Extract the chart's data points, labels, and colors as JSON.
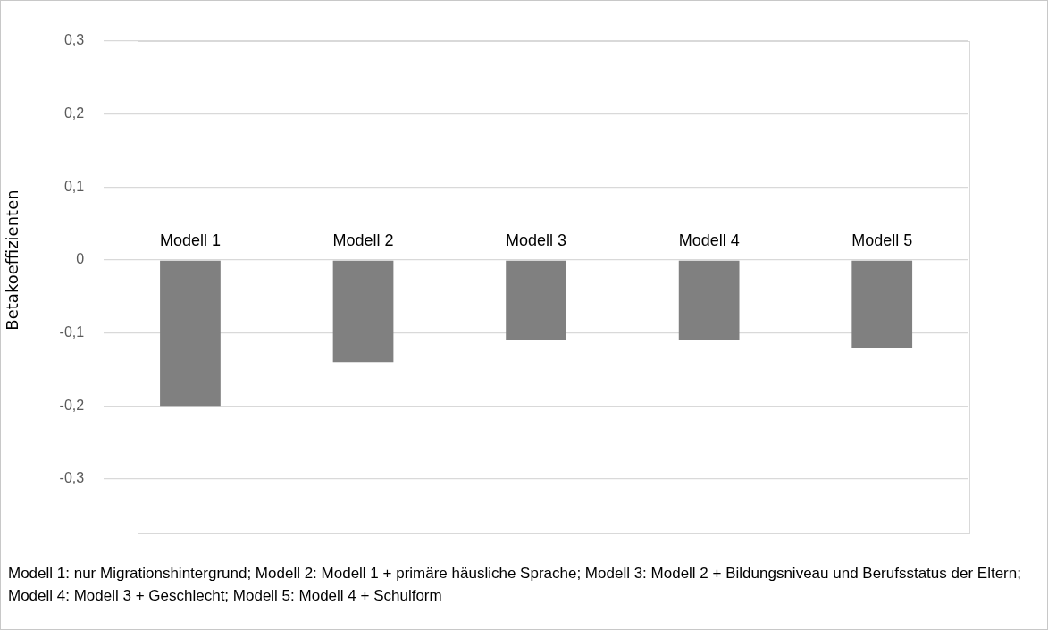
{
  "chart_data": {
    "type": "bar",
    "ylabel": "Betakoeffizienten",
    "categories": [
      "Modell 1",
      "Modell 2",
      "Modell 3",
      "Modell 4",
      "Modell 5"
    ],
    "values": [
      -0.2,
      -0.14,
      -0.11,
      -0.11,
      -0.12
    ],
    "color": "#808080",
    "ylim": [
      -0.3,
      0.3
    ],
    "yticks": [
      {
        "value": -0.3,
        "label": "-0,3"
      },
      {
        "value": -0.2,
        "label": "-0,2"
      },
      {
        "value": -0.1,
        "label": "-0,1"
      },
      {
        "value": 0,
        "label": "0"
      },
      {
        "value": 0.1,
        "label": "0,1"
      },
      {
        "value": 0.2,
        "label": "0,2"
      },
      {
        "value": 0.3,
        "label": "0,3"
      }
    ],
    "grid": "y",
    "legend": false,
    "annotations": [
      "Modell 1: nur Migrationshintergrund; Modell 2: Modell 1 + primäre häusliche Sprache; Modell 3: Modell 2 + Bildungsniveau und Berufsstatus der Eltern; Modell 4: Modell 3 + Geschlecht; Modell 5: Modell 4 + Schulform"
    ]
  }
}
